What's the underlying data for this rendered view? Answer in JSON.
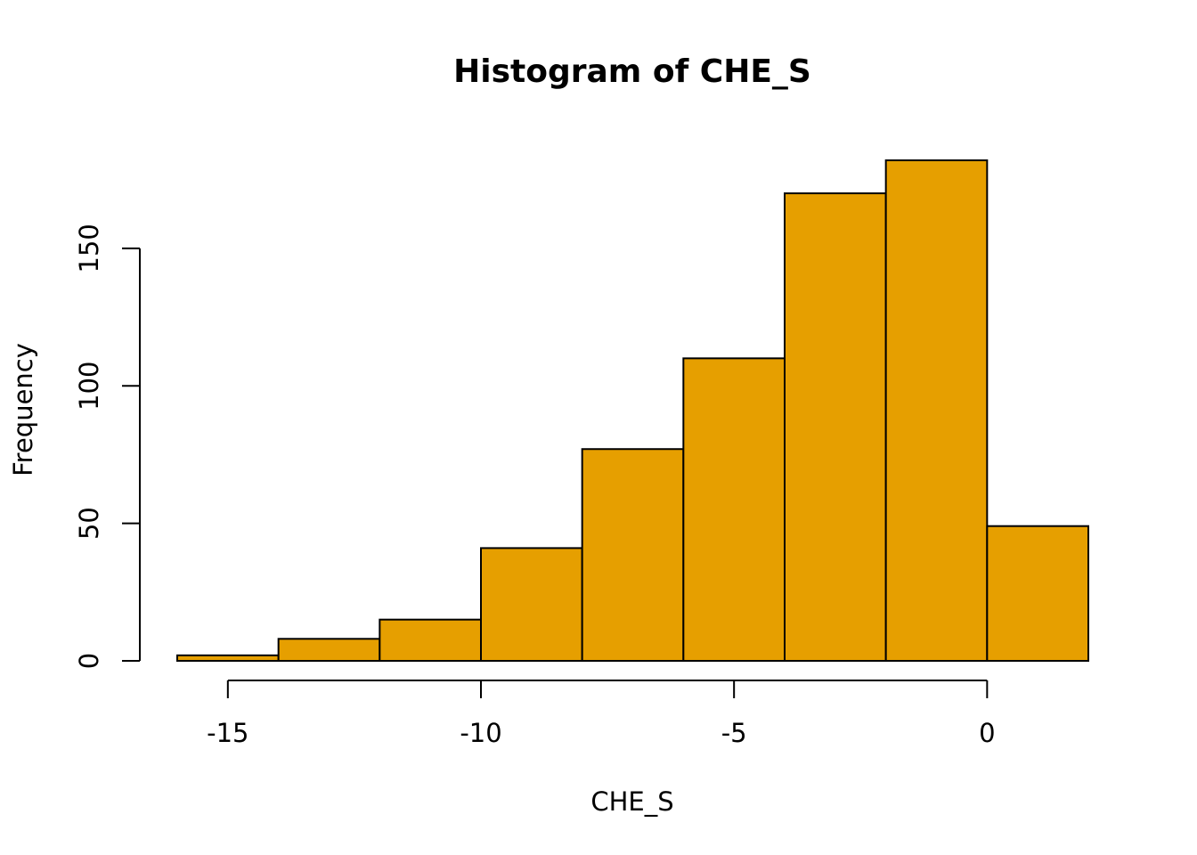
{
  "chart_data": {
    "type": "bar",
    "title": "Histogram of CHE_S",
    "xlabel": "CHE_S",
    "ylabel": "Frequency",
    "bar_color": "#E69F00",
    "border_color": "#000000",
    "bins": [
      {
        "x0": -16,
        "x1": -14,
        "count": 2
      },
      {
        "x0": -14,
        "x1": -12,
        "count": 8
      },
      {
        "x0": -12,
        "x1": -10,
        "count": 15
      },
      {
        "x0": -10,
        "x1": -8,
        "count": 41
      },
      {
        "x0": -8,
        "x1": -6,
        "count": 77
      },
      {
        "x0": -6,
        "x1": -4,
        "count": 110
      },
      {
        "x0": -4,
        "x1": -2,
        "count": 170
      },
      {
        "x0": -2,
        "x1": 0,
        "count": 182
      },
      {
        "x0": 0,
        "x1": 2,
        "count": 49
      }
    ],
    "xlim": [
      -16,
      2
    ],
    "ylim": [
      0,
      182
    ],
    "x_ticks": [
      -15,
      -10,
      -5,
      0
    ],
    "x_tick_labels": [
      "-15",
      "-10",
      "-5",
      "0"
    ],
    "y_ticks": [
      0,
      50,
      100,
      150
    ],
    "y_tick_labels": [
      "0",
      "50",
      "100",
      "150"
    ],
    "grid": false
  }
}
